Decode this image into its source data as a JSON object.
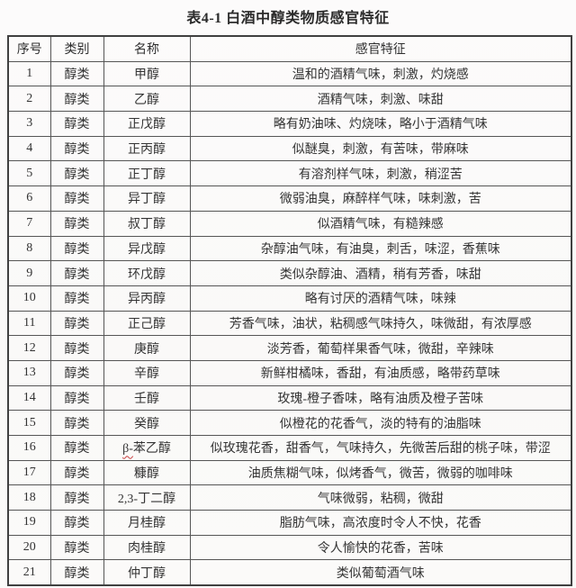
{
  "title": "表4-1  白酒中醇类物质感官特征",
  "colors": {
    "page_background": "#fbfafa",
    "table_border": "#404040",
    "cell_border": "#565656",
    "text": "#333333",
    "spellcheck_mark": "#c94040"
  },
  "table": {
    "headers": [
      "序号",
      "类别",
      "名称",
      "感官特征"
    ],
    "rows": [
      {
        "no": "1",
        "category": "醇类",
        "name": "甲醇",
        "feature": "温和的酒精气味，刺激，灼烧感"
      },
      {
        "no": "2",
        "category": "醇类",
        "name": "乙醇",
        "feature": "酒精气味，刺激、味甜"
      },
      {
        "no": "3",
        "category": "醇类",
        "name": "正戊醇",
        "feature": "略有奶油味、灼烧味，略小于酒精气味"
      },
      {
        "no": "4",
        "category": "醇类",
        "name": "正丙醇",
        "feature": "似醚臭，刺激，有苦味，带麻味"
      },
      {
        "no": "5",
        "category": "醇类",
        "name": "正丁醇",
        "feature": "有溶剂样气味，刺激，稍涩苦"
      },
      {
        "no": "6",
        "category": "醇类",
        "name": "异丁醇",
        "feature": "微弱油臭，麻醉样气味，味刺激，苦"
      },
      {
        "no": "7",
        "category": "醇类",
        "name": "叔丁醇",
        "feature": "似酒精气味，有糙辣感"
      },
      {
        "no": "8",
        "category": "醇类",
        "name": "异戊醇",
        "feature": "杂醇油气味，有油臭，刺舌，味涩，香蕉味"
      },
      {
        "no": "9",
        "category": "醇类",
        "name": "环戊醇",
        "feature": "类似杂醇油、酒精，稍有芳香，味甜"
      },
      {
        "no": "10",
        "category": "醇类",
        "name": "异丙醇",
        "feature": "略有讨厌的酒精气味，味辣"
      },
      {
        "no": "11",
        "category": "醇类",
        "name": "正己醇",
        "feature": "芳香气味，油状，粘稠感气味持久，味微甜，有浓厚感"
      },
      {
        "no": "12",
        "category": "醇类",
        "name": "庚醇",
        "feature": "淡芳香，葡萄样果香气味，微甜，辛辣味"
      },
      {
        "no": "13",
        "category": "醇类",
        "name": "辛醇",
        "feature": "新鲜柑橘味，香甜，有油质感，略带药草味"
      },
      {
        "no": "14",
        "category": "醇类",
        "name": "壬醇",
        "feature": "玫瑰-橙子香味，略有油质及橙子苦味"
      },
      {
        "no": "15",
        "category": "醇类",
        "name": "癸醇",
        "feature": "似橙花的花香气，淡的特有的油脂味"
      },
      {
        "no": "16",
        "category": "醇类",
        "name": "β-苯乙醇",
        "marked_prefix": "β-",
        "feature": "似玫瑰花香，甜香气，气味持久，先微苦后甜的桃子味，带涩"
      },
      {
        "no": "17",
        "category": "醇类",
        "name": "糠醇",
        "feature": "油质焦糊气味，似烤香气，微苦，微弱的咖啡味"
      },
      {
        "no": "18",
        "category": "醇类",
        "name": "2,3-丁二醇",
        "feature": "气味微弱，粘稠，微甜"
      },
      {
        "no": "19",
        "category": "醇类",
        "name": "月桂醇",
        "feature": "脂肪气味，高浓度时令人不快，花香"
      },
      {
        "no": "20",
        "category": "醇类",
        "name": "肉桂醇",
        "feature": "令人愉快的花香，苦味"
      },
      {
        "no": "21",
        "category": "醇类",
        "name": "仲丁醇",
        "feature": "类似葡萄酒气味"
      }
    ]
  }
}
